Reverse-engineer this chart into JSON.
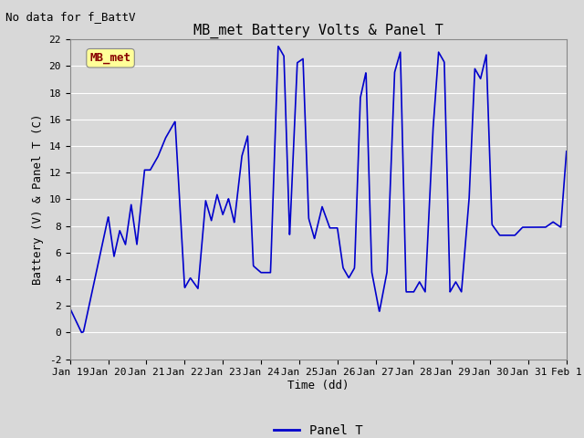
{
  "title": "MB_met Battery Volts & Panel T",
  "no_data_text": "No data for f_BattV",
  "ylabel": "Battery (V) & Panel T (C)",
  "xlabel": "Time (dd)",
  "legend_label": "Panel T",
  "legend_color": "#0000cc",
  "line_color": "#0000cc",
  "line_width": 1.2,
  "ylim": [
    -2,
    22
  ],
  "xlim_start": 0,
  "xlim_end": 13,
  "xtick_labels": [
    "Jan 19",
    "Jan 20",
    "Jan 21",
    "Jan 22",
    "Jan 23",
    "Jan 24",
    "Jan 25",
    "Jan 26",
    "Jan 27",
    "Jan 28",
    "Jan 29",
    "Jan 30",
    "Jan 31",
    "Feb 1"
  ],
  "bg_color": "#d8d8d8",
  "plot_bg_color": "#d8d8d8",
  "grid_color": "#ffffff",
  "mb_met_label": "MB_met",
  "mb_met_fg": "#880000",
  "mb_met_bg": "#ffff99",
  "title_fontsize": 11,
  "axis_label_fontsize": 9,
  "tick_fontsize": 8,
  "no_data_fontsize": 9,
  "mb_met_fontsize": 9,
  "legend_fontsize": 9
}
